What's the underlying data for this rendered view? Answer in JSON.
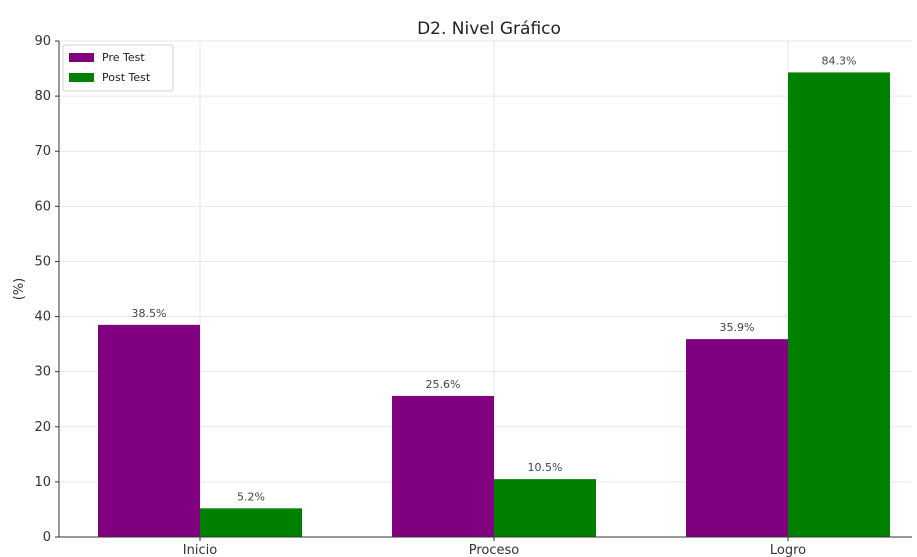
{
  "chart_data": {
    "type": "bar",
    "title": "D2. Nivel Gráfico",
    "xlabel": "",
    "ylabel": "(%)",
    "categories": [
      "Inicio",
      "Proceso",
      "Logro"
    ],
    "series": [
      {
        "name": "Pre Test",
        "values": [
          38.5,
          25.6,
          35.9
        ],
        "labels": [
          "38.5%",
          "25.6%",
          "35.9%"
        ],
        "color": "#800080"
      },
      {
        "name": "Post Test",
        "values": [
          5.2,
          10.5,
          84.3
        ],
        "labels": [
          "5.2%",
          "10.5%",
          "84.3%"
        ],
        "color": "#008000"
      }
    ],
    "ylim": [
      0,
      90
    ],
    "yticks": [
      0,
      10,
      20,
      30,
      40,
      50,
      60,
      70,
      80,
      90
    ],
    "grid": true,
    "legend": "top-left"
  }
}
